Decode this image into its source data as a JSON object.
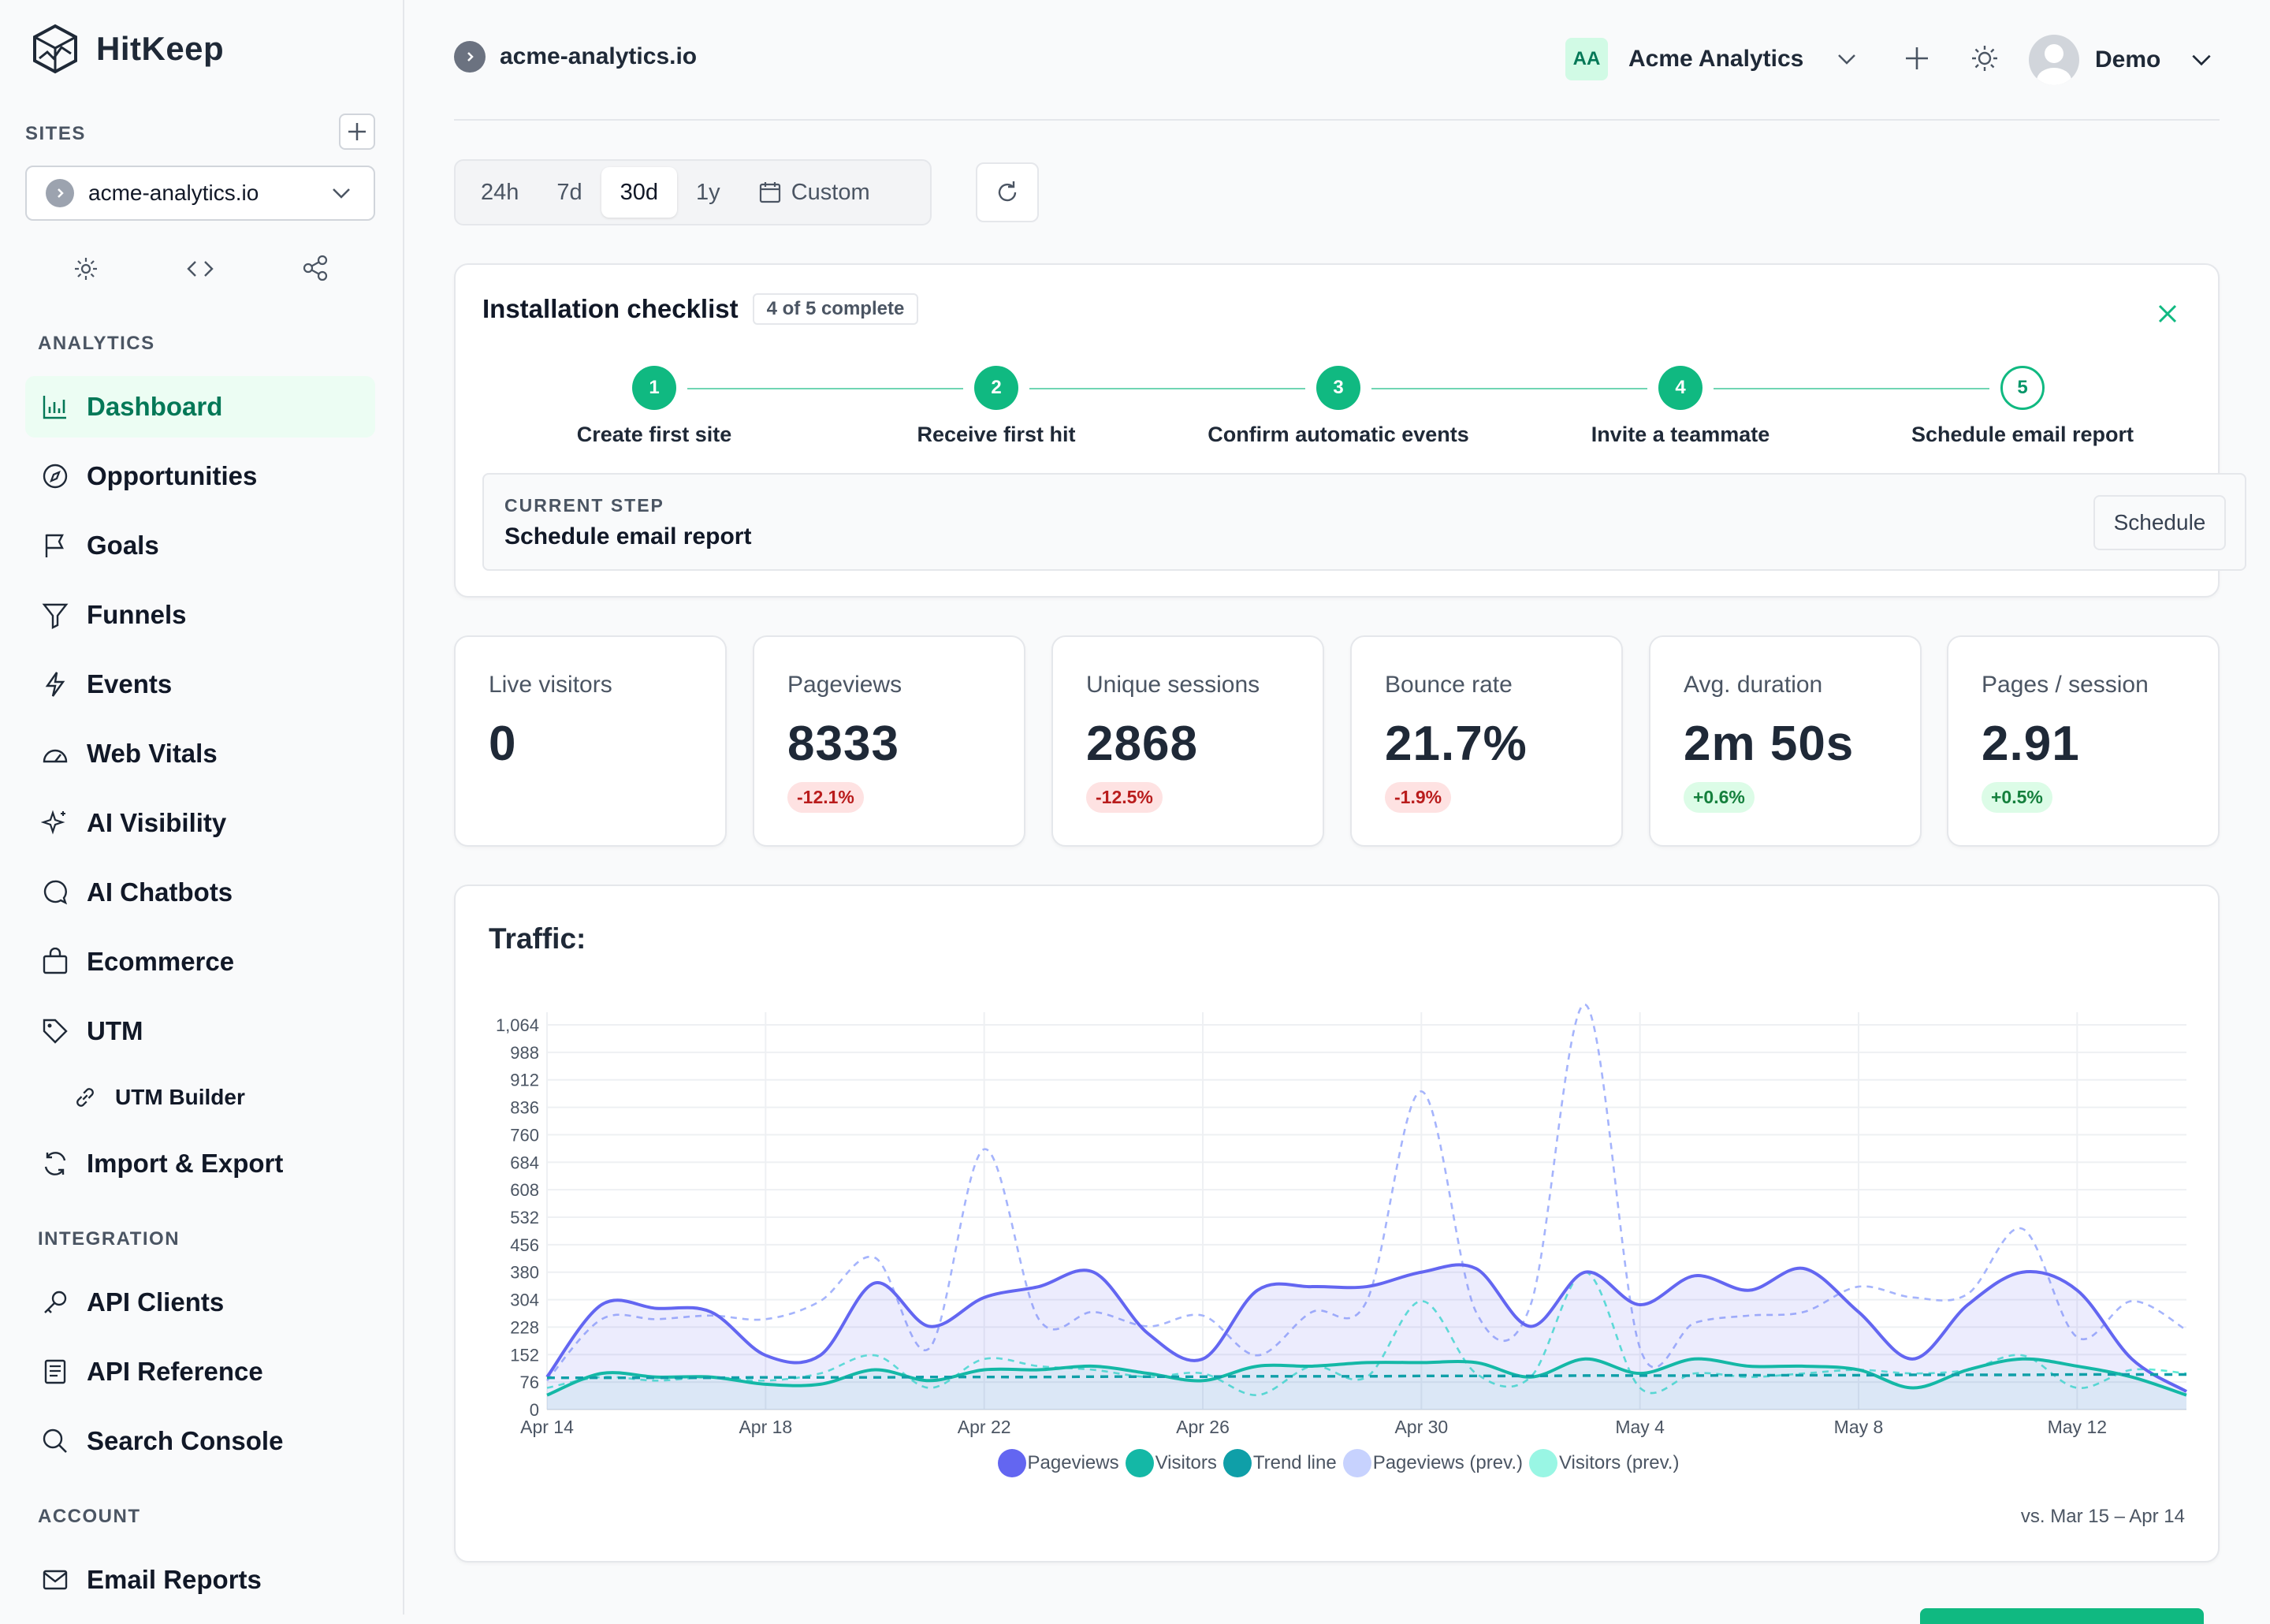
{
  "sidebar": {
    "logo_text": "HitKeep",
    "sites_label": "SITES",
    "site_name": "acme-analytics.io",
    "analytics_label": "ANALYTICS",
    "analytics_items": [
      {
        "label": "Dashboard",
        "icon": "bar-chart-icon"
      },
      {
        "label": "Opportunities",
        "icon": "compass-icon"
      },
      {
        "label": "Goals",
        "icon": "flag-icon"
      },
      {
        "label": "Funnels",
        "icon": "funnel-icon"
      },
      {
        "label": "Events",
        "icon": "bolt-icon"
      },
      {
        "label": "Web Vitals",
        "icon": "gauge-icon"
      },
      {
        "label": "AI Visibility",
        "icon": "sparkle-icon"
      },
      {
        "label": "AI Chatbots",
        "icon": "chat-icon"
      },
      {
        "label": "Ecommerce",
        "icon": "bag-icon"
      },
      {
        "label": "UTM",
        "icon": "tag-icon"
      },
      {
        "label": "UTM Builder",
        "icon": "link-icon"
      },
      {
        "label": "Import & Export",
        "icon": "sync-icon"
      }
    ],
    "integration_label": "INTEGRATION",
    "integration_items": [
      {
        "label": "API Clients",
        "icon": "key-icon"
      },
      {
        "label": "API Reference",
        "icon": "document-icon"
      },
      {
        "label": "Search Console",
        "icon": "search-icon"
      }
    ],
    "account_label": "ACCOUNT",
    "account_items": [
      {
        "label": "Email Reports",
        "icon": "mail-icon"
      }
    ]
  },
  "header": {
    "site_name": "acme-analytics.io",
    "org_initials": "AA",
    "org_name": "Acme Analytics",
    "user_name": "Demo"
  },
  "range": {
    "options": [
      "24h",
      "7d",
      "30d",
      "1y"
    ],
    "selected": "30d",
    "custom_label": "Custom"
  },
  "checklist": {
    "title": "Installation checklist",
    "progress": "4 of 5 complete",
    "steps": [
      {
        "num": "1",
        "label": "Create first site",
        "done": true
      },
      {
        "num": "2",
        "label": "Receive first hit",
        "done": true
      },
      {
        "num": "3",
        "label": "Confirm automatic events",
        "done": true
      },
      {
        "num": "4",
        "label": "Invite a teammate",
        "done": true
      },
      {
        "num": "5",
        "label": "Schedule email report",
        "done": false
      }
    ],
    "current_label": "CURRENT STEP",
    "current_value": "Schedule email report",
    "action_label": "Schedule"
  },
  "stats": [
    {
      "label": "Live visitors",
      "value": "0",
      "change": ""
    },
    {
      "label": "Pageviews",
      "value": "8333",
      "change": "-12.1%",
      "trend": "neg"
    },
    {
      "label": "Unique sessions",
      "value": "2868",
      "change": "-12.5%",
      "trend": "neg"
    },
    {
      "label": "Bounce rate",
      "value": "21.7%",
      "change": "-1.9%",
      "trend": "neg"
    },
    {
      "label": "Avg. duration",
      "value": "2m 50s",
      "change": "+0.6%",
      "trend": "pos"
    },
    {
      "label": "Pages / session",
      "value": "2.91",
      "change": "+0.5%",
      "trend": "pos"
    }
  ],
  "traffic": {
    "title": "Traffic:",
    "comparison": "vs. Mar 15 – Apr 14"
  },
  "chart_data": {
    "type": "line",
    "title": "Traffic:",
    "xlabel": "",
    "ylabel": "",
    "ylim": [
      0,
      1064
    ],
    "yticks": [
      0,
      76,
      152,
      228,
      304,
      380,
      456,
      532,
      608,
      684,
      760,
      836,
      912,
      988,
      1064
    ],
    "ytick_labels": [
      "0",
      "76",
      "152",
      "228",
      "304",
      "380",
      "456",
      "532",
      "608",
      "684",
      "760",
      "836",
      "912",
      "988",
      "1,064"
    ],
    "xtick_labels": [
      "Apr 14",
      "Apr 18",
      "Apr 22",
      "Apr 26",
      "Apr 30",
      "May 4",
      "May 8",
      "May 12"
    ],
    "x": [
      "Apr 14",
      "Apr 15",
      "Apr 16",
      "Apr 17",
      "Apr 18",
      "Apr 19",
      "Apr 20",
      "Apr 21",
      "Apr 22",
      "Apr 23",
      "Apr 24",
      "Apr 25",
      "Apr 26",
      "Apr 27",
      "Apr 28",
      "Apr 29",
      "Apr 30",
      "May 1",
      "May 2",
      "May 3",
      "May 4",
      "May 5",
      "May 6",
      "May 7",
      "May 8",
      "May 9",
      "May 10",
      "May 11",
      "May 12",
      "May 13",
      "May 14"
    ],
    "legend_position": "bottom",
    "series": [
      {
        "name": "Pageviews",
        "color": "#6366f1",
        "style": "solid-area",
        "values": [
          90,
          290,
          280,
          270,
          150,
          150,
          350,
          230,
          310,
          340,
          380,
          210,
          140,
          330,
          340,
          340,
          380,
          390,
          230,
          380,
          290,
          370,
          330,
          390,
          270,
          140,
          290,
          380,
          330,
          140,
          50
        ]
      },
      {
        "name": "Visitors",
        "color": "#14b8a6",
        "style": "solid",
        "values": [
          40,
          100,
          90,
          90,
          70,
          70,
          110,
          80,
          110,
          110,
          120,
          100,
          80,
          120,
          120,
          130,
          130,
          130,
          90,
          140,
          100,
          140,
          120,
          120,
          110,
          60,
          110,
          140,
          120,
          90,
          40
        ]
      },
      {
        "name": "Trend line",
        "color": "#0f9fa8",
        "style": "dashed",
        "values": [
          88,
          88,
          88,
          88,
          89,
          89,
          89,
          90,
          90,
          90,
          91,
          91,
          91,
          92,
          92,
          92,
          93,
          93,
          93,
          94,
          94,
          94,
          95,
          95,
          95,
          96,
          96,
          96,
          97,
          97,
          97
        ]
      },
      {
        "name": "Pageviews (prev.)",
        "color": "#a5b4fc",
        "style": "dashed",
        "values": [
          80,
          250,
          250,
          260,
          250,
          300,
          420,
          170,
          720,
          250,
          270,
          230,
          260,
          150,
          270,
          300,
          880,
          270,
          290,
          1120,
          170,
          240,
          260,
          270,
          340,
          310,
          320,
          500,
          200,
          300,
          220
        ]
      },
      {
        "name": "Visitors (prev.)",
        "color": "#5eead4",
        "style": "dashed",
        "values": [
          60,
          90,
          80,
          90,
          80,
          100,
          150,
          60,
          140,
          120,
          110,
          90,
          100,
          40,
          120,
          90,
          300,
          100,
          90,
          380,
          60,
          100,
          90,
          100,
          110,
          100,
          110,
          150,
          60,
          110,
          100
        ]
      }
    ]
  }
}
